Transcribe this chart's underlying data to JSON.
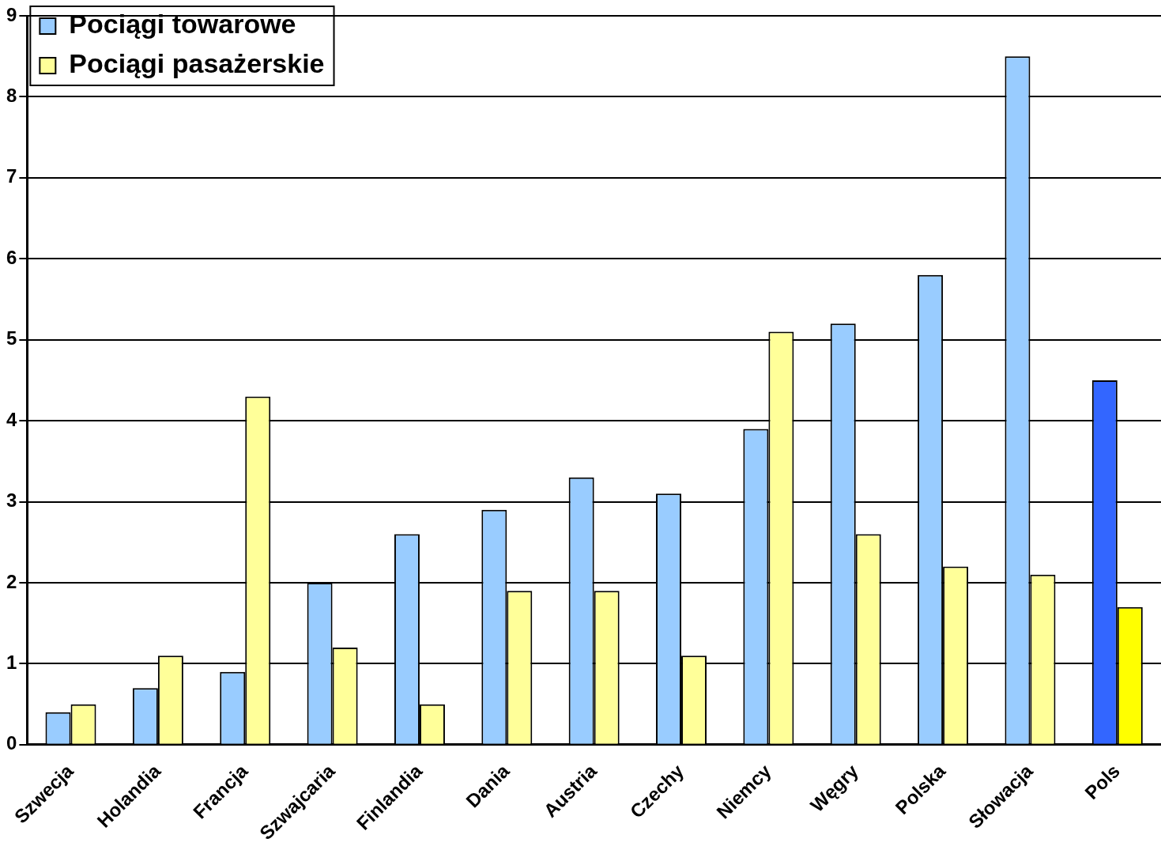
{
  "chart_data": {
    "type": "bar",
    "categories": [
      "Szwecja",
      "Holandia",
      "Francja",
      "Szwajcaria",
      "Finlandia",
      "Dania",
      "Austria",
      "Czechy",
      "Niemcy",
      "Węgry",
      "Polska",
      "Słowacja",
      "Pols"
    ],
    "series": [
      {
        "name": "Pociągi towarowe",
        "color": "#99ccff",
        "colors": [
          "#99ccff",
          "#99ccff",
          "#99ccff",
          "#99ccff",
          "#99ccff",
          "#99ccff",
          "#99ccff",
          "#99ccff",
          "#99ccff",
          "#99ccff",
          "#99ccff",
          "#99ccff",
          "#3366ff"
        ],
        "values": [
          0.4,
          0.7,
          0.9,
          2.0,
          2.6,
          2.9,
          3.3,
          3.1,
          3.9,
          5.2,
          5.8,
          8.5,
          4.5
        ]
      },
      {
        "name": "Pociągi pasażerskie",
        "color": "#ffff99",
        "colors": [
          "#ffff99",
          "#ffff99",
          "#ffff99",
          "#ffff99",
          "#ffff99",
          "#ffff99",
          "#ffff99",
          "#ffff99",
          "#ffff99",
          "#ffff99",
          "#ffff99",
          "#ffff99",
          "#ffff00"
        ],
        "values": [
          0.5,
          1.1,
          4.3,
          1.2,
          0.5,
          1.9,
          1.9,
          1.1,
          5.1,
          2.6,
          2.2,
          2.1,
          1.7
        ]
      }
    ],
    "ylim": [
      0,
      9
    ],
    "yticks": [
      0,
      1,
      2,
      3,
      4,
      5,
      6,
      7,
      8,
      9
    ],
    "grid": "y",
    "legend": "top left"
  }
}
